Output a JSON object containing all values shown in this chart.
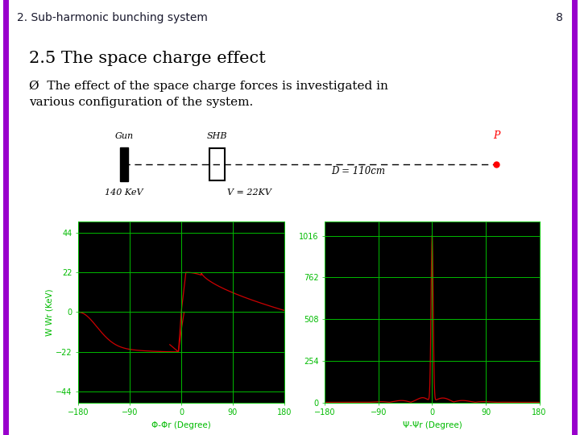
{
  "header_text": "2. Sub-harmonic bunching system",
  "page_number": "8",
  "header_bar_color": "#2E5A8E",
  "header_text_color": "#1a1a2e",
  "border_color": "#9900cc",
  "background_color": "#ffffff",
  "title": "2.5 The space charge effect",
  "body_text": "Ø  The effect of the space charge forces is investigated in\nvarious configuration of the system.",
  "diagram_gun_label": "Gun",
  "diagram_shb_label": "SHB",
  "diagram_p_label": "P",
  "diagram_d_label": "D = 110cm",
  "diagram_energy": "140 KeV",
  "diagram_voltage": "V = 22KV",
  "plot_bg_color": "#000000",
  "plot_outer_bg": "#000000",
  "plot_grid_color": "#00bb00",
  "plot_curve_color": "#cc0000",
  "left_plot_ylabel": "W Wr (KeV)",
  "left_plot_xlabel": "Φ-Φr (Degree)",
  "left_plot_yticks": [
    -44,
    -22,
    0,
    22,
    44
  ],
  "left_plot_xticks": [
    -180,
    -90,
    0,
    90,
    180
  ],
  "right_plot_xlabel": "Ψ-Ψr (Degree)",
  "right_plot_yticks": [
    0,
    254,
    508,
    762,
    1016
  ],
  "right_plot_xticks": [
    -180,
    -90,
    0,
    90,
    180
  ],
  "tick_color": "#00bb00",
  "tick_fontsize": 7,
  "label_fontsize": 7.5
}
